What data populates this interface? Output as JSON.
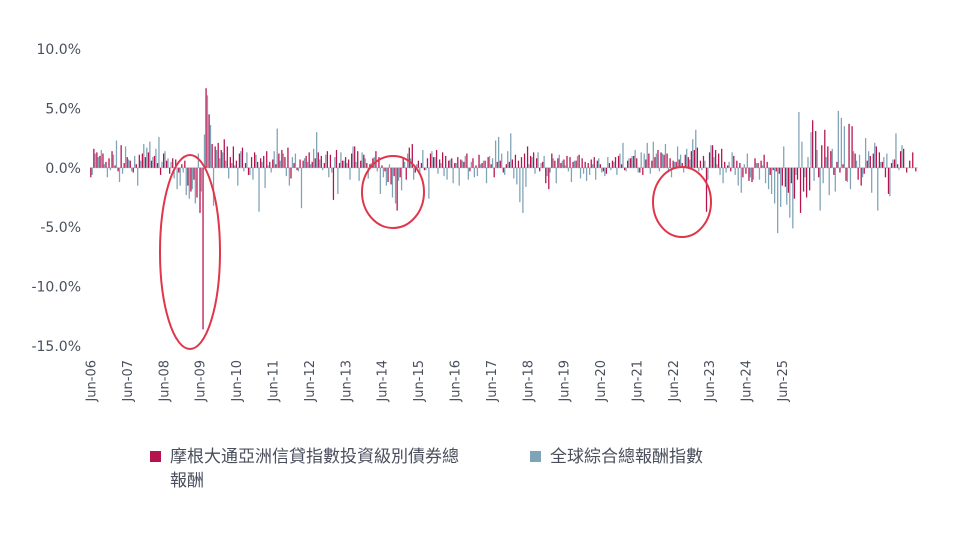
{
  "chart_data": {
    "type": "bar",
    "title": "",
    "xlabel": "",
    "ylabel": "",
    "ylim": [
      -15,
      10
    ],
    "yticks": [
      10,
      5,
      0,
      -5,
      -10,
      -15
    ],
    "ytick_labels": [
      "10.0%",
      "5.0%",
      "0.0%",
      "-5.0%",
      "-10.0%",
      "-15.0%"
    ],
    "xtick_labels": [
      "Jun-06",
      "Jun-07",
      "Jun-08",
      "Jun-09",
      "Jun-10",
      "Jun-11",
      "Jun-12",
      "Jun-13",
      "Jun-14",
      "Jun-15",
      "Jun-16",
      "Jun-17",
      "Jun-18",
      "Jun-19",
      "Jun-20",
      "Jun-21",
      "Jun-22",
      "Jun-23",
      "Jun-24",
      "Jun-25"
    ],
    "x_start": "2006-06",
    "frequency": "monthly",
    "grid": false,
    "legend_position": "bottom",
    "series": [
      {
        "name": "摩根大通亞洲信貸指數投資級別債券總報酬",
        "color": "#b5124e",
        "values": [
          -0.8,
          1.6,
          1.3,
          1.0,
          1.2,
          0.5,
          0.8,
          1.4,
          0.2,
          -0.3,
          1.9,
          0.4,
          0.9,
          0.6,
          -0.4,
          0.3,
          1.1,
          1.2,
          0.9,
          1.3,
          0.6,
          1.0,
          0.4,
          -0.6,
          1.2,
          0.6,
          -0.5,
          0.8,
          0.7,
          -0.4,
          0.3,
          0.6,
          -1.5,
          -2.0,
          -1.0,
          -2.5,
          -3.8,
          -13.6,
          6.7,
          4.5,
          2.0,
          1.8,
          2.1,
          1.5,
          2.4,
          1.8,
          0.9,
          1.8,
          0.6,
          1.2,
          1.7,
          0.4,
          -0.6,
          0.9,
          1.3,
          0.5,
          0.8,
          1.0,
          1.4,
          0.5,
          0.7,
          0.3,
          1.2,
          1.5,
          0.9,
          1.7,
          -0.9,
          0.4,
          -0.2,
          0.7,
          0.6,
          1.0,
          1.3,
          0.5,
          0.8,
          1.3,
          1.0,
          0.4,
          1.4,
          1.1,
          -2.7,
          1.5,
          0.4,
          0.6,
          0.9,
          0.7,
          1.2,
          1.8,
          1.4,
          0.6,
          1.1,
          0.4,
          0.3,
          0.8,
          1.4,
          0.9,
          0.2,
          -0.3,
          -1.2,
          -1.4,
          -0.7,
          -3.6,
          -0.8,
          0.9,
          -1.0,
          1.7,
          2.0,
          -0.4,
          0.6,
          0.4,
          -0.2,
          0.8,
          1.2,
          0.9,
          1.5,
          0.7,
          1.3,
          1.0,
          0.6,
          0.8,
          0.4,
          0.9,
          0.7,
          0.5,
          1.2,
          -0.3,
          0.8,
          0.2,
          1.1,
          0.4,
          0.6,
          0.9,
          0.3,
          -0.8,
          0.5,
          0.6,
          -0.4,
          0.3,
          0.5,
          0.7,
          1.1,
          0.6,
          0.9,
          1.2,
          1.8,
          1.0,
          1.3,
          0.8,
          -0.3,
          0.5,
          -1.3,
          -1.8,
          1.2,
          0.6,
          0.8,
          0.4,
          0.7,
          1.0,
          0.9,
          0.5,
          0.6,
          1.1,
          0.8,
          0.5,
          0.4,
          0.7,
          0.9,
          0.6,
          0.3,
          -0.3,
          -0.5,
          0.4,
          0.6,
          0.9,
          1.0,
          0.3,
          -0.2,
          0.6,
          0.8,
          1.0,
          0.8,
          -0.4,
          -0.6,
          0.7,
          1.2,
          0.6,
          0.9,
          1.5,
          1.3,
          1.1,
          1.2,
          0.8,
          0.6,
          0.5,
          0.7,
          0.4,
          1.1,
          0.9,
          1.4,
          1.5,
          1.7,
          0.6,
          1.0,
          -3.7,
          1.3,
          1.9,
          1.5,
          1.2,
          1.6,
          0.5,
          0.2,
          -0.3,
          1.0,
          0.6,
          0.4,
          -0.8,
          -0.5,
          -1.1,
          -1.2,
          0.8,
          0.4,
          0.6,
          1.1,
          0.5,
          -0.6,
          -0.2,
          -0.3,
          -0.5,
          -1.5,
          -1.6,
          -2.1,
          -1.3,
          -2.6,
          -1.0,
          -3.8,
          -2.0,
          -2.5,
          -1.9,
          4.0,
          3.1,
          -0.8,
          1.9,
          3.2,
          1.8,
          1.4,
          -0.6,
          0.5,
          -0.4,
          0.3,
          -1.1,
          3.7,
          3.5,
          1.2,
          -1.0,
          -1.5,
          -0.5,
          0.6,
          1.0,
          1.2,
          1.8,
          1.3,
          0.5,
          -0.8,
          -2.2,
          0.4,
          0.7,
          0.3,
          1.4,
          1.6,
          -0.4,
          0.6,
          1.3,
          -0.3
        ]
      },
      {
        "name": "全球綜合總報酬指數",
        "color": "#7fa3b7",
        "values": [
          -0.6,
          1.2,
          0.9,
          1.5,
          0.3,
          -0.8,
          -0.2,
          1.1,
          2.3,
          -1.2,
          -0.5,
          1.8,
          0.7,
          -0.3,
          1.0,
          -1.5,
          0.6,
          2.0,
          1.7,
          2.2,
          0.9,
          1.6,
          2.6,
          0.5,
          1.4,
          0.8,
          0.5,
          -0.9,
          -1.8,
          -1.5,
          -0.4,
          -2.3,
          -2.6,
          -1.8,
          -3.0,
          1.2,
          -2.0,
          2.8,
          6.1,
          3.6,
          -3.2,
          1.5,
          0.8,
          1.3,
          0.6,
          -0.9,
          0.4,
          0.2,
          -1.5,
          1.4,
          -0.3,
          1.3,
          -0.6,
          -1.0,
          1.1,
          -3.7,
          0.5,
          -1.7,
          0.2,
          -0.4,
          1.4,
          3.3,
          0.6,
          1.2,
          -0.7,
          -1.5,
          0.9,
          1.2,
          -0.3,
          -3.4,
          0.8,
          0.5,
          0.3,
          1.6,
          3.0,
          0.7,
          -0.2,
          1.1,
          -0.8,
          -0.4,
          0.9,
          -2.2,
          1.3,
          0.6,
          0.4,
          -1.0,
          1.8,
          0.5,
          -1.1,
          1.3,
          0.8,
          -0.9,
          0.4,
          0.9,
          -0.3,
          -2.2,
          -0.8,
          -1.5,
          0.3,
          -2.5,
          -3.0,
          -1.1,
          -1.9,
          0.5,
          1.2,
          0.8,
          -1.0,
          0.3,
          -0.6,
          1.5,
          -0.2,
          -2.6,
          1.4,
          0.9,
          -0.5,
          0.4,
          -0.7,
          -1.0,
          0.7,
          -1.3,
          0.4,
          -1.5,
          0.6,
          1.0,
          -1.0,
          0.5,
          -0.8,
          -0.7,
          0.3,
          0.6,
          -1.3,
          1.0,
          0.8,
          2.3,
          2.6,
          1.2,
          -0.6,
          1.4,
          2.9,
          -0.9,
          -1.4,
          -2.9,
          -3.8,
          -1.6,
          0.3,
          0.9,
          -0.5,
          1.3,
          0.4,
          1.0,
          -0.7,
          -0.4,
          0.8,
          -1.3,
          1.1,
          0.6,
          0.2,
          -0.3,
          -1.2,
          0.6,
          1.0,
          -0.9,
          -0.5,
          -1.1,
          -0.6,
          0.3,
          -1.0,
          0.8,
          -0.4,
          -0.7,
          0.9,
          -0.2,
          0.5,
          -0.6,
          1.2,
          2.1,
          -0.3,
          0.8,
          1.0,
          1.5,
          -0.4,
          1.3,
          1.2,
          2.1,
          -0.5,
          2.2,
          1.2,
          -0.3,
          1.2,
          2.0,
          -0.4,
          -0.8,
          0.5,
          1.8,
          1.1,
          -0.4,
          1.6,
          0.7,
          2.4,
          3.2,
          -0.3,
          -0.2,
          0.6,
          -1.0,
          1.9,
          0.9,
          0.3,
          -0.6,
          -1.3,
          -0.4,
          0.5,
          1.3,
          -0.6,
          -1.5,
          -2.1,
          0.3,
          1.2,
          -0.8,
          -1.0,
          0.4,
          -1.0,
          0.2,
          -1.3,
          -1.8,
          -2.2,
          -3.0,
          -5.5,
          -3.3,
          1.8,
          -3.1,
          -4.2,
          -5.1,
          -0.6,
          4.7,
          2.2,
          -0.8,
          0.9,
          3.0,
          -1.1,
          1.5,
          -3.6,
          -1.3,
          0.9,
          -2.3,
          1.6,
          -2.0,
          4.8,
          4.2,
          3.5,
          -1.2,
          -1.8,
          1.4,
          0.6,
          1.1,
          -0.8,
          2.5,
          1.4,
          -2.1,
          2.1,
          -3.6,
          0.5,
          0.9,
          1.2,
          -2.4,
          0.7,
          2.9,
          -0.2,
          1.9
        ]
      }
    ]
  }
}
